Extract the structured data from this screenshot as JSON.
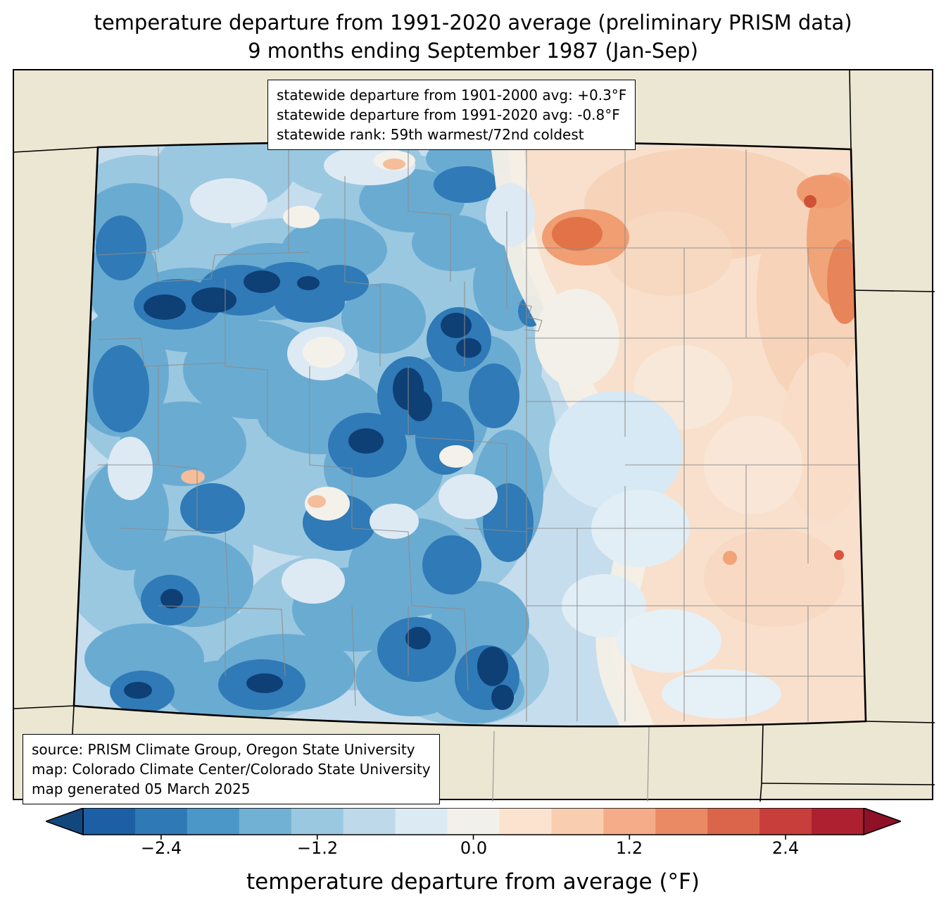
{
  "title": {
    "line1": "temperature departure from 1991-2020 average (preliminary PRISM data)",
    "line2": "9 months ending September 1987 (Jan-Sep)"
  },
  "stats_box": {
    "line1": "statewide departure from 1901-2000 avg: +0.3°F",
    "line2": "statewide departure from 1991-2020 avg: -0.8°F",
    "line3": "statewide rank: 59th warmest/72nd coldest"
  },
  "source_box": {
    "line1": "source: PRISM Climate Group, Oregon State University",
    "line2": "map: Colorado Climate Center/Colorado State University",
    "line3": "map generated 05 March 2025"
  },
  "colorbar": {
    "label": "temperature departure from average (°F)",
    "ticks": [
      "−2.4",
      "−1.2",
      "0.0",
      "1.2",
      "2.4"
    ],
    "segment_colors": [
      "#1c5fa5",
      "#2f79b6",
      "#4b97c8",
      "#71b1d4",
      "#9ac8e0",
      "#bedaea",
      "#dcebf3",
      "#f2f0ea",
      "#fbe3d0",
      "#f9cdb0",
      "#f4ad88",
      "#ea8a64",
      "#db654b",
      "#c73e3b",
      "#ae202f"
    ],
    "arrow_left_color": "#12477d",
    "arrow_right_color": "#8f1127"
  },
  "map": {
    "colors": {
      "background": "#ece7d2",
      "state_border": "#000000",
      "county_border": "#8c8c8c",
      "coldest": "#0e3f75",
      "cold": "#2f7ab7",
      "neutral": "#f2f0ea",
      "warm": "#f09e72",
      "warmest": "#cf5236"
    }
  }
}
